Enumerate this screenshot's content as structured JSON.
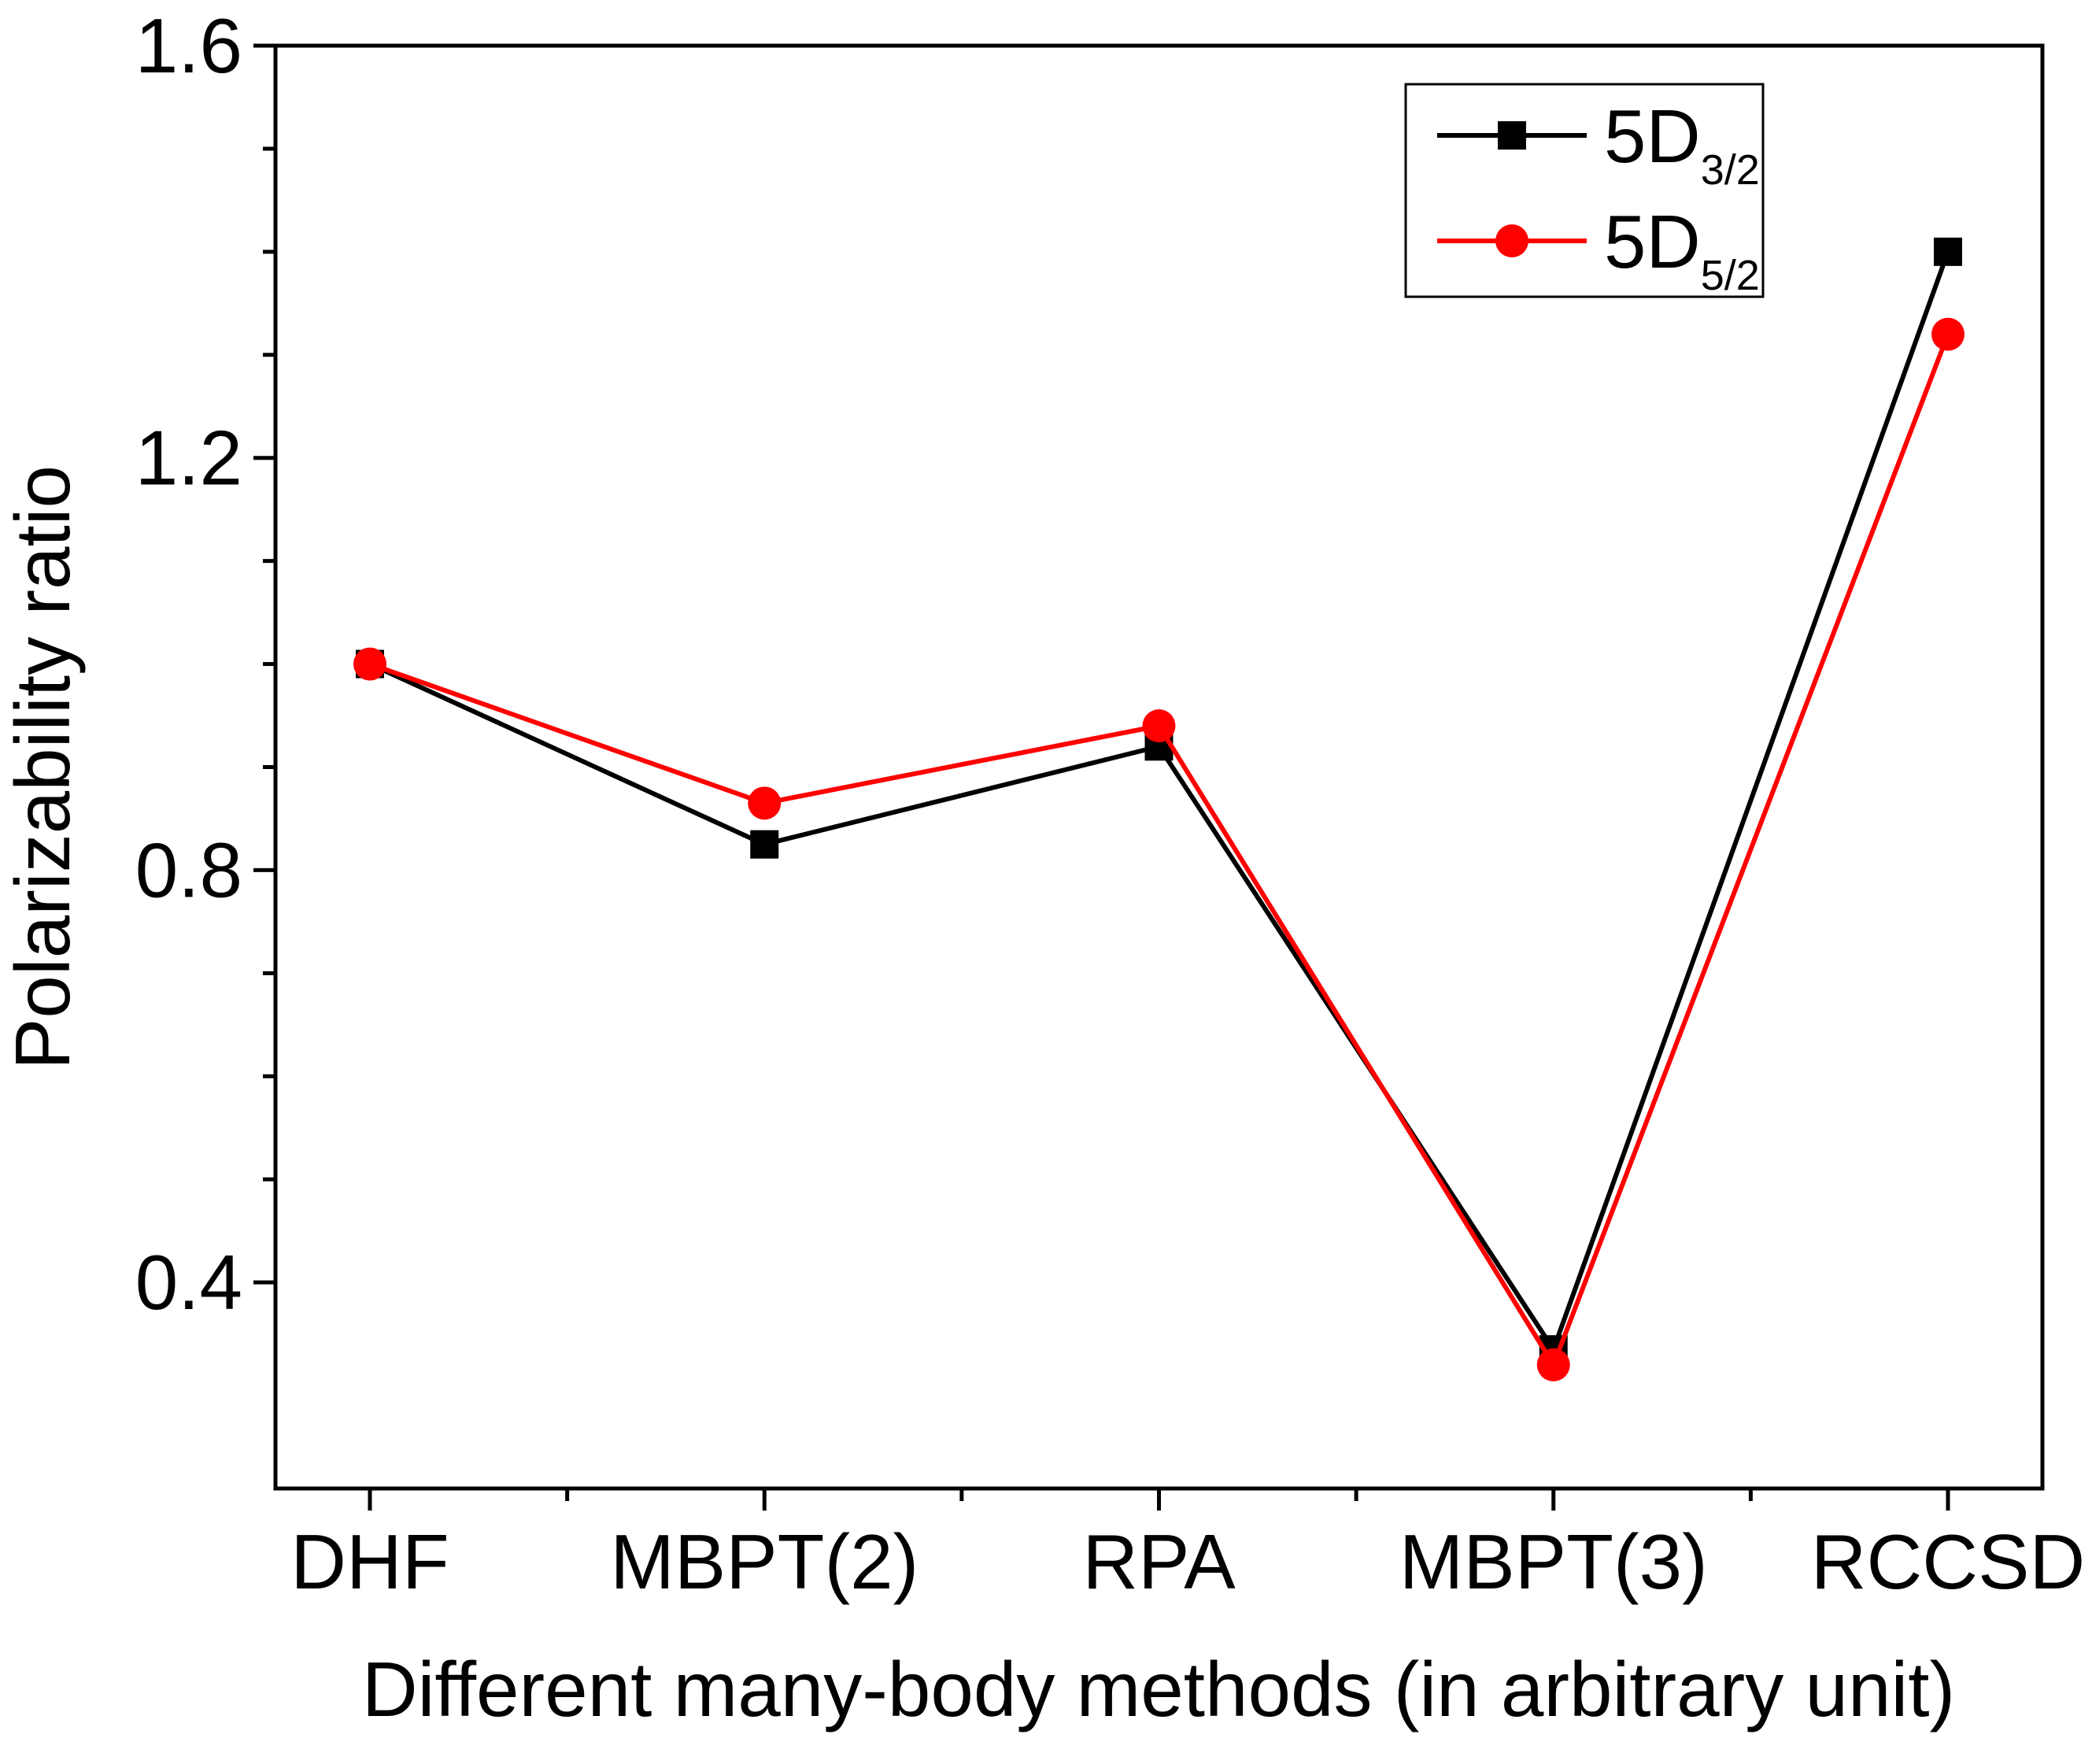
{
  "chart_data": {
    "type": "line",
    "title": "",
    "xlabel": "Different many-body methods (in arbitrary unit)",
    "ylabel": "Polarizability ratio",
    "categories": [
      "DHF",
      "MBPT(2)",
      "RPA",
      "MBPT(3)",
      "RCCSD"
    ],
    "ylim": [
      0.2,
      1.6
    ],
    "yticks": [
      "0.4",
      "0.8",
      "1.2",
      "1.6"
    ],
    "ytick_values": [
      0.4,
      0.8,
      1.2,
      1.6
    ],
    "grid": false,
    "legend_position": "top-right",
    "series": [
      {
        "name": "5D",
        "subscript": "3/2",
        "color": "#000000",
        "marker": "square",
        "values": [
          1.0,
          0.825,
          0.92,
          0.335,
          1.4
        ]
      },
      {
        "name": "5D",
        "subscript": "5/2",
        "color": "#ff0000",
        "marker": "circle",
        "values": [
          1.0,
          0.865,
          0.94,
          0.32,
          1.32
        ]
      }
    ]
  }
}
